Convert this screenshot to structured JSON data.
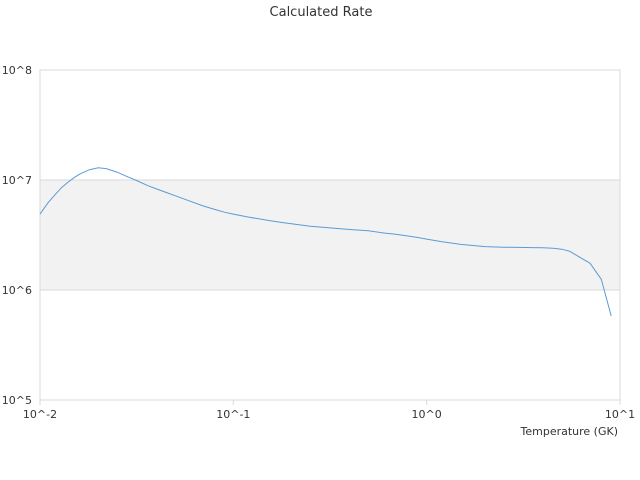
{
  "chart_data": {
    "type": "line",
    "title": "Calculated Rate",
    "xlabel": "Temperature (GK)",
    "ylabel": "",
    "x_scale": "log",
    "y_scale": "log",
    "xlim": [
      0.01,
      10
    ],
    "ylim": [
      100000,
      100000000
    ],
    "x_tick_labels": [
      "10^-2",
      "10^-1",
      "10^0",
      "10^1"
    ],
    "y_tick_labels": [
      "10^8",
      "10^7",
      "10^6",
      "10^5"
    ],
    "grid": true,
    "alternate_band_fill": "#f2f2f2",
    "series": [
      {
        "color": "#5b9bd5",
        "x": [
          0.01,
          0.011,
          0.012,
          0.013,
          0.014,
          0.015,
          0.016,
          0.018,
          0.02,
          0.022,
          0.025,
          0.028,
          0.032,
          0.036,
          0.04,
          0.045,
          0.05,
          0.06,
          0.07,
          0.08,
          0.09,
          0.1,
          0.12,
          0.15,
          0.18,
          0.2,
          0.25,
          0.3,
          0.4,
          0.5,
          0.6,
          0.7,
          0.8,
          0.9,
          1.0,
          1.2,
          1.5,
          2.0,
          2.5,
          3.0,
          3.5,
          4.0,
          4.5,
          5.0,
          5.5,
          6.0,
          7.0,
          8.0,
          9.0
        ],
        "y": [
          4900000,
          6200000,
          7400000,
          8600000,
          9600000,
          10500000,
          11300000,
          12400000,
          12900000,
          12700000,
          11800000,
          10800000,
          9800000,
          8900000,
          8300000,
          7700000,
          7200000,
          6400000,
          5800000,
          5400000,
          5100000,
          4900000,
          4600000,
          4300000,
          4100000,
          4000000,
          3800000,
          3700000,
          3550000,
          3450000,
          3300000,
          3200000,
          3100000,
          3000000,
          2900000,
          2750000,
          2600000,
          2480000,
          2450000,
          2440000,
          2430000,
          2420000,
          2400000,
          2350000,
          2250000,
          2050000,
          1750000,
          1250000,
          580000
        ]
      }
    ]
  }
}
